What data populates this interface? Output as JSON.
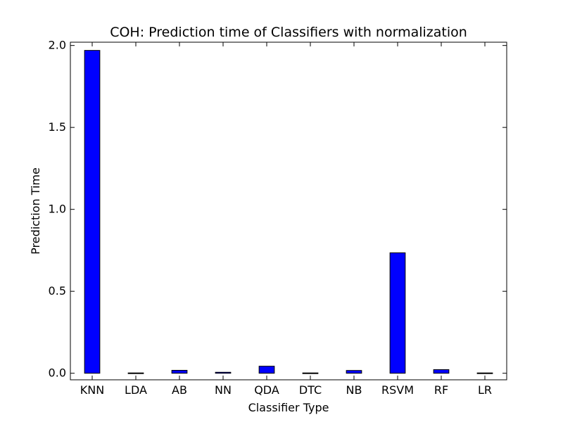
{
  "chart_data": {
    "type": "bar",
    "title": "COH: Prediction time of Classifiers with normalization",
    "xlabel": "Classifier Type",
    "ylabel": "Prediction Time",
    "categories": [
      "KNN",
      "LDA",
      "AB",
      "NN",
      "QDA",
      "DTC",
      "NB",
      "RSVM",
      "RF",
      "LR"
    ],
    "values": [
      1.97,
      0.002,
      0.018,
      0.006,
      0.043,
      0.002,
      0.017,
      0.735,
      0.022,
      0.002
    ],
    "ylim": [
      -0.04,
      2.02
    ],
    "yticks": [
      0.0,
      0.5,
      1.0,
      1.5,
      2.0
    ],
    "ytick_labels": [
      "0.0",
      "0.5",
      "1.0",
      "1.5",
      "2.0"
    ],
    "bar_color": "#0000ff",
    "edge_color": "#000000",
    "grid": false,
    "legend": "none"
  }
}
